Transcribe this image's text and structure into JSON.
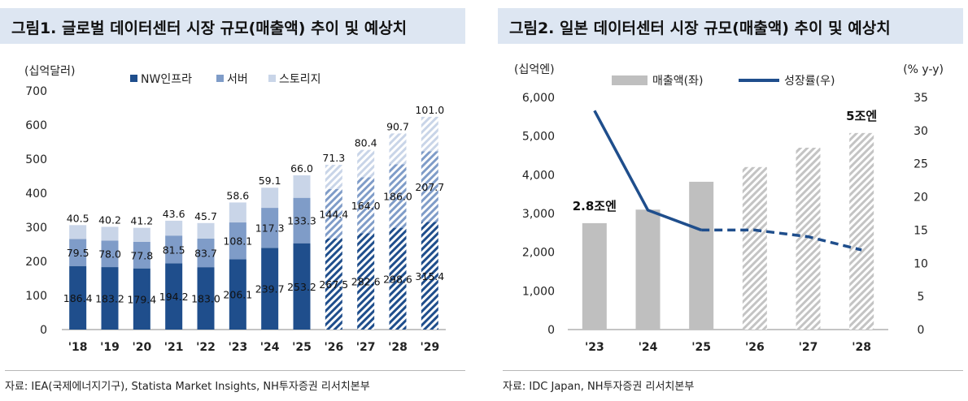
{
  "chart_data": [
    {
      "type": "bar",
      "stacked": true,
      "title": "그림1. 글로벌 데이터센터 시장 규모(매출액) 추이 및 예상치",
      "ylabel": "(십억달러)",
      "ylim": [
        0,
        700
      ],
      "yticks": [
        "0",
        "100",
        "200",
        "300",
        "400",
        "500",
        "600",
        "700"
      ],
      "categories": [
        "'18",
        "'19",
        "'20",
        "'21",
        "'22",
        "'23",
        "'24",
        "'25",
        "'26",
        "'27",
        "'28",
        "'29"
      ],
      "forecast_from_index": 8,
      "legend_position": "top",
      "series": [
        {
          "name": "NW인프라",
          "color": "#1f4e8c",
          "values": [
            186.4,
            183.2,
            179.4,
            194.2,
            183.0,
            206.1,
            239.7,
            253.2,
            267.5,
            282.6,
            298.6,
            315.4
          ],
          "labels": [
            "186.4",
            "183.2",
            "179.4",
            "194.2",
            "183.0",
            "206.1",
            "239.7",
            "253.2",
            "267.5",
            "282.6",
            "298.6",
            "315.4"
          ]
        },
        {
          "name": "서버",
          "color": "#7f9cc8",
          "values": [
            79.5,
            78.0,
            77.8,
            81.5,
            83.7,
            108.1,
            117.3,
            133.3,
            144.4,
            164.0,
            186.0,
            207.7
          ],
          "labels": [
            "79.5",
            "78.0",
            "77.8",
            "81.5",
            "83.7",
            "108.1",
            "117.3",
            "133.3",
            "144.4",
            "164.0",
            "186.0",
            "207.7"
          ]
        },
        {
          "name": "스토리지",
          "color": "#c9d5e8",
          "values": [
            40.5,
            40.2,
            41.2,
            43.6,
            45.7,
            58.6,
            59.1,
            66.0,
            71.3,
            80.4,
            90.7,
            101.0
          ],
          "labels": [
            "40.5",
            "40.2",
            "41.2",
            "43.6",
            "45.7",
            "58.6",
            "59.1",
            "66.0",
            "71.3",
            "80.4",
            "90.7",
            "101.0"
          ]
        }
      ]
    },
    {
      "type": "bar+line",
      "title": "그림2. 일본 데이터센터 시장 규모(매출액) 추이 및 예상치",
      "ylabel_left": "(십억엔)",
      "ylabel_right": "(% y-y)",
      "ylim_left": [
        0,
        6000
      ],
      "ylim_right": [
        0,
        35
      ],
      "yticks_left": [
        "0",
        "1,000",
        "2,000",
        "3,000",
        "4,000",
        "5,000",
        "6,000"
      ],
      "yticks_right": [
        "0",
        "5",
        "10",
        "15",
        "20",
        "25",
        "30",
        "35"
      ],
      "categories": [
        "'23",
        "'24",
        "'25",
        "'26",
        "'27",
        "'28"
      ],
      "forecast_from_index": 3,
      "legend_position": "top",
      "series": [
        {
          "name": "매출액(좌)",
          "type": "bar",
          "axis": "left",
          "color": "#bfbfbf",
          "values": [
            2750,
            3100,
            3820,
            4200,
            4700,
            5080
          ]
        },
        {
          "name": "성장률(우)",
          "type": "line",
          "axis": "right",
          "color": "#1f4e8c",
          "values": [
            33.0,
            18.0,
            15.0,
            15.0,
            14.0,
            12.0
          ]
        }
      ],
      "annotations": [
        {
          "text": "2.8조엔",
          "category_index": 0
        },
        {
          "text": "5조엔",
          "category_index": 5
        }
      ]
    }
  ],
  "sources": [
    "자료: IEA(국제에너지기구), Statista Market Insights, NH투자증권 리서치본부",
    "자료: IDC Japan, NH투자증권 리서치본부"
  ]
}
